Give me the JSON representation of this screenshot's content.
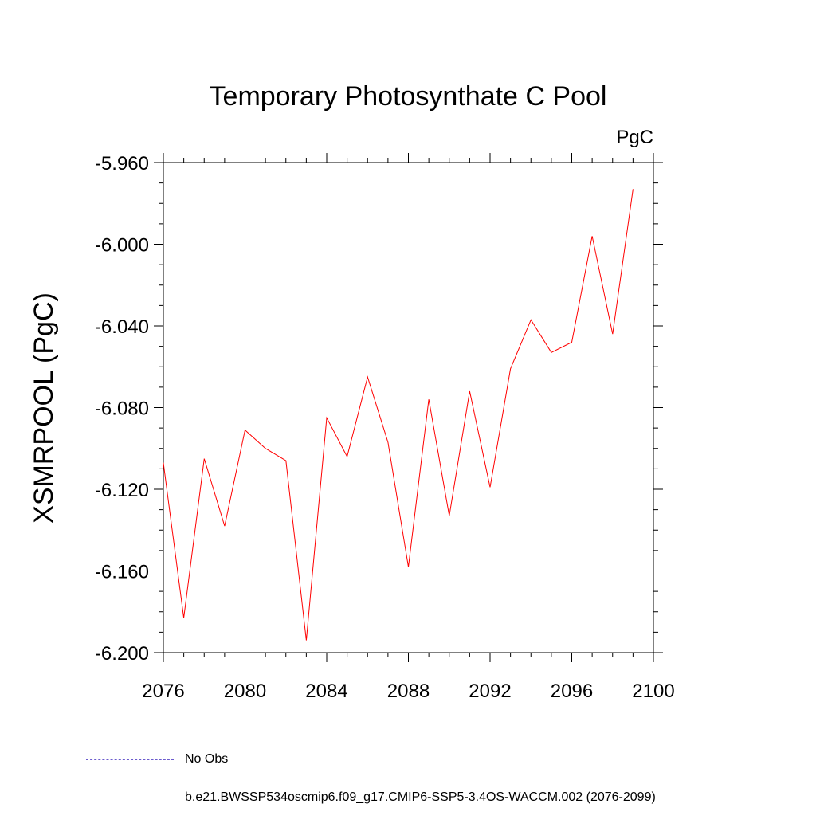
{
  "chart_data": {
    "type": "line",
    "title": "Temporary Photosynthate C Pool",
    "units": "PgC",
    "xlabel": "",
    "ylabel": "XSMRPOOL  (PgC)",
    "xlim": [
      2076,
      2100
    ],
    "ylim": [
      -6.2,
      -5.96
    ],
    "x_ticks": [
      2076,
      2080,
      2084,
      2088,
      2092,
      2096,
      2100
    ],
    "y_ticks": [
      "-6.200",
      "-6.160",
      "-6.120",
      "-6.080",
      "-6.040",
      "-6.000",
      "-5.960"
    ],
    "series": [
      {
        "name": "b.e21.BWSSP534oscmip6.f09_g17.CMIP6-SSP5-3.4OS-WACCM.002 (2076-2099)",
        "color": "#ff0000",
        "x": [
          2076,
          2077,
          2078,
          2079,
          2080,
          2081,
          2082,
          2083,
          2084,
          2085,
          2086,
          2087,
          2088,
          2089,
          2090,
          2091,
          2092,
          2093,
          2094,
          2095,
          2096,
          2097,
          2098,
          2099
        ],
        "values": [
          -6.107,
          -6.183,
          -6.105,
          -6.138,
          -6.091,
          -6.1,
          -6.106,
          -6.194,
          -6.085,
          -6.104,
          -6.065,
          -6.097,
          -6.158,
          -6.076,
          -6.133,
          -6.072,
          -6.119,
          -6.061,
          -6.037,
          -6.053,
          -6.048,
          -5.996,
          -6.044,
          -5.973
        ]
      }
    ],
    "legend": [
      {
        "label": "No Obs",
        "color": "#6a5acd",
        "style": "dashed"
      },
      {
        "label": "b.e21.BWSSP534oscmip6.f09_g17.CMIP6-SSP5-3.4OS-WACCM.002 (2076-2099)",
        "color": "#ff0000",
        "style": "solid"
      }
    ]
  }
}
